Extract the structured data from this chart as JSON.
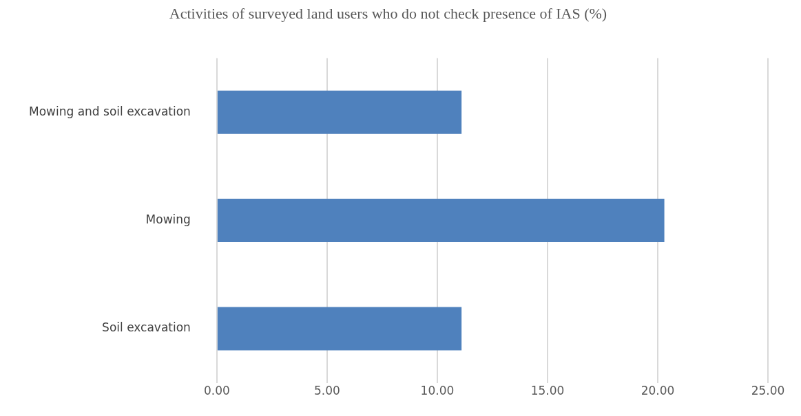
{
  "chart_data": {
    "type": "bar",
    "orientation": "horizontal",
    "title": "Activities of surveyed land users who do not check presence of IAS (%)",
    "categories": [
      "Mowing and soil excavation",
      "Mowing",
      "Soil excavation"
    ],
    "values": [
      11.1,
      20.3,
      11.1
    ],
    "color": "#4f81bd",
    "xlim": [
      0,
      25
    ],
    "xticks": [
      {
        "value": 0,
        "label": "0.00"
      },
      {
        "value": 5,
        "label": "5.00"
      },
      {
        "value": 10,
        "label": "10.00"
      },
      {
        "value": 15,
        "label": "15.00"
      },
      {
        "value": 20,
        "label": "20.00"
      },
      {
        "value": 25,
        "label": "25.00"
      }
    ],
    "grid": "x",
    "legend": false
  }
}
